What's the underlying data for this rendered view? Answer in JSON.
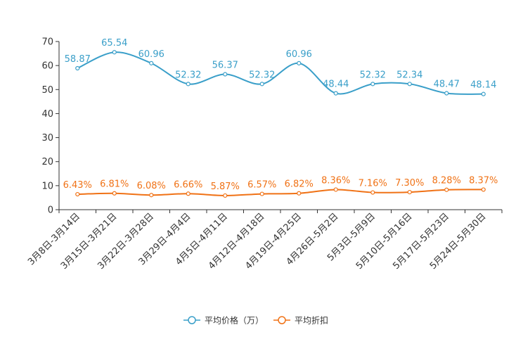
{
  "chart_data": {
    "type": "line",
    "title": "",
    "xlabel": "",
    "ylabel": "",
    "ylim": [
      0,
      70
    ],
    "yticks": [
      0,
      10,
      20,
      30,
      40,
      50,
      60,
      70
    ],
    "grid": false,
    "legend_position": "bottom-center",
    "categories": [
      "3月8日-3月14日",
      "3月15日-3月21日",
      "3月22日-3月28日",
      "3月29日-4月4日",
      "4月5日-4月11日",
      "4月12日-4月18日",
      "4月19日-4月25日",
      "4月26日-5月2日",
      "5月3日-5月9日",
      "5月10日-5月16日",
      "5月17日-5月23日",
      "5月24日-5月30日"
    ],
    "series": [
      {
        "name": "平均价格（万）",
        "color": "#3a9fc9",
        "values": [
          58.87,
          65.54,
          60.96,
          52.32,
          56.37,
          52.32,
          60.96,
          48.44,
          52.32,
          52.34,
          48.47,
          48.14
        ],
        "labels": [
          "58.87",
          "65.54",
          "60.96",
          "52.32",
          "56.37",
          "52.32",
          "60.96",
          "48.44",
          "52.32",
          "52.34",
          "48.47",
          "48.14"
        ]
      },
      {
        "name": "平均折扣",
        "color": "#f07216",
        "values": [
          6.43,
          6.81,
          6.08,
          6.66,
          5.87,
          6.57,
          6.82,
          8.36,
          7.16,
          7.3,
          8.28,
          8.37
        ],
        "labels": [
          "6.43%",
          "6.81%",
          "6.08%",
          "6.66%",
          "5.87%",
          "6.57%",
          "6.82%",
          "8.36%",
          "7.16%",
          "7.30%",
          "8.28%",
          "8.37%"
        ]
      }
    ]
  }
}
